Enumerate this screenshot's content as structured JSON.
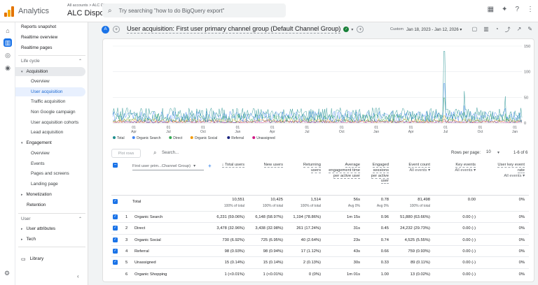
{
  "topbar": {
    "app_name": "Analytics",
    "account_crumb": "All accounts > ALC Disposal",
    "account_name": "ALC Disposal",
    "search_placeholder": "Try searching \"how to do BigQuery export\""
  },
  "sidebar": {
    "items": [
      {
        "label": "Reports snapshot"
      },
      {
        "label": "Realtime overview"
      },
      {
        "label": "Realtime pages"
      }
    ],
    "lifecycle": {
      "label": "Life cycle",
      "acquisition": "Acquisition",
      "acq_items": [
        "Overview",
        "User acquisition",
        "Traffic acquisition",
        "Non Google campaign",
        "User acquisition cohorts",
        "Lead acquisition"
      ],
      "engagement": "Engagement",
      "eng_items": [
        "Overview",
        "Events",
        "Pages and screens",
        "Landing page"
      ],
      "monetization": "Monetization",
      "retention": "Retention"
    },
    "user": {
      "label": "User",
      "attributes": "User attributes",
      "tech": "Tech"
    },
    "library": "Library"
  },
  "header": {
    "avatar_letter": "A",
    "title": "User acquisition: First user primary channel group (Default Channel Group)",
    "date_label": "Custom",
    "date_range": "Jan 18, 2023 - Jan 12, 2026"
  },
  "chart_data": {
    "type": "line",
    "y_ticks": [
      150,
      100,
      50,
      0
    ],
    "ylim": [
      0,
      150
    ],
    "x_ticks": [
      {
        "day": "01",
        "month": "Apr"
      },
      {
        "day": "01",
        "month": "Jul"
      },
      {
        "day": "01",
        "month": "Oct"
      },
      {
        "day": "01",
        "month": "Jan"
      },
      {
        "day": "01",
        "month": "Apr"
      },
      {
        "day": "01",
        "month": "Jul"
      },
      {
        "day": "01",
        "month": "Oct"
      },
      {
        "day": "01",
        "month": "Jan"
      },
      {
        "day": "01",
        "month": "Apr"
      },
      {
        "day": "01",
        "month": "Jul"
      },
      {
        "day": "01",
        "month": "Oct"
      },
      {
        "day": "01",
        "month": "Jan"
      }
    ],
    "legend": [
      {
        "name": "Total",
        "color": "#1e8e8e"
      },
      {
        "name": "Organic Search",
        "color": "#4285f4"
      },
      {
        "name": "Direct",
        "color": "#34a853"
      },
      {
        "name": "Organic Social",
        "color": "#f29900"
      },
      {
        "name": "Referral",
        "color": "#1a237e"
      },
      {
        "name": "Unassigned",
        "color": "#d01884"
      }
    ],
    "spikes": [
      {
        "x_frac": 0.81,
        "value": 140
      },
      {
        "x_frac": 0.86,
        "value": 62
      },
      {
        "x_frac": 0.96,
        "value": 52
      }
    ],
    "typical_value": 15
  },
  "toolbar": {
    "plot_rows": "Plot rows",
    "search_label": "Search...",
    "rows_per_page_label": "Rows per page:",
    "rows_per_page_value": "10",
    "range_label": "1-6 of 6"
  },
  "table": {
    "dimension_label": "First user prim...Channel Group)",
    "columns": [
      {
        "label": "Total users",
        "sub": ""
      },
      {
        "label": "New users",
        "sub": ""
      },
      {
        "label": "Returning users",
        "sub": ""
      },
      {
        "label": "Average engagement time per active user",
        "sub": ""
      },
      {
        "label": "Engaged sessions per active user",
        "sub": ""
      },
      {
        "label": "Event count",
        "sub": "All events"
      },
      {
        "label": "Key events",
        "sub": "All events"
      },
      {
        "label": "User key event rate",
        "sub": "All events"
      }
    ],
    "total": {
      "label": "Total",
      "values": [
        "10,551",
        "10,425",
        "1,514",
        "56s",
        "0.78",
        "81,498",
        "0.00",
        "0%"
      ],
      "subs": [
        "100% of total",
        "100% of total",
        "100% of total",
        "Avg 0%",
        "Avg 0%",
        "100% of total",
        "",
        ""
      ]
    },
    "rows": [
      {
        "n": "1",
        "name": "Organic Search",
        "values": [
          "6,231 (59.06%)",
          "6,148 (58.97%)",
          "1,194 (78.86%)",
          "1m 15s",
          "0.96",
          "51,880 (63.66%)",
          "0.00 (-)",
          "0%"
        ]
      },
      {
        "n": "2",
        "name": "Direct",
        "values": [
          "3,478 (32.96%)",
          "3,438 (32.98%)",
          "261 (17.24%)",
          "31s",
          "0.45",
          "24,232 (29.73%)",
          "0.00 (-)",
          "0%"
        ]
      },
      {
        "n": "3",
        "name": "Organic Social",
        "values": [
          "730 (6.92%)",
          "725 (6.95%)",
          "40 (2.64%)",
          "23s",
          "0.74",
          "4,525 (5.55%)",
          "0.00 (-)",
          "0%"
        ]
      },
      {
        "n": "4",
        "name": "Referral",
        "values": [
          "98 (0.93%)",
          "98 (0.94%)",
          "17 (1.12%)",
          "43s",
          "0.66",
          "759 (0.93%)",
          "0.00 (-)",
          "0%"
        ]
      },
      {
        "n": "5",
        "name": "Unassigned",
        "values": [
          "15 (0.14%)",
          "15 (0.14%)",
          "2 (0.13%)",
          "30s",
          "0.33",
          "89 (0.11%)",
          "0.00 (-)",
          "0%"
        ]
      },
      {
        "n": "6",
        "name": "Organic Shopping",
        "values": [
          "1 (<0.01%)",
          "1 (<0.01%)",
          "0 (0%)",
          "1m 01s",
          "1.00",
          "13 (0.02%)",
          "0.00 (-)",
          "0%"
        ]
      }
    ]
  }
}
